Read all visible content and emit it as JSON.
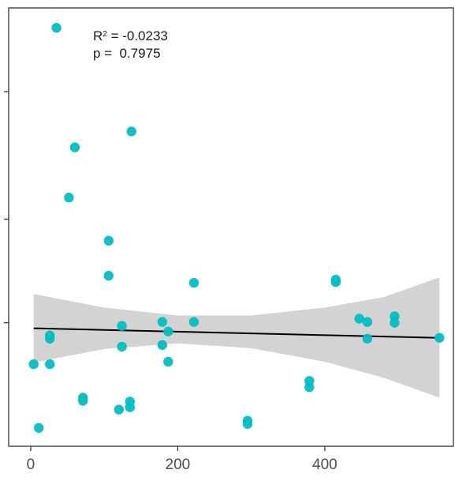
{
  "chart_data": {
    "type": "scatter",
    "title": "",
    "xlabel": "",
    "ylabel": "",
    "xlim": [
      -30,
      575
    ],
    "ylim": [
      -1.85,
      3.65
    ],
    "x_ticks": [
      0,
      200,
      400
    ],
    "x_tick_labels": [
      "0",
      "200",
      "400"
    ],
    "y_ticks": [
      -0.3,
      1.0,
      2.6
    ],
    "y_tick_labels": [
      "",
      "",
      ""
    ],
    "grid": false,
    "annotation": {
      "r2_label": "R",
      "r2_sup": "2",
      "r2_text": " = -0.0233",
      "p_text": "p =  0.7975"
    },
    "point_color": "#00bfc4",
    "line_color": "#000000",
    "band_color": "#d3d3d3",
    "points": [
      {
        "x": 35,
        "y": 3.4
      },
      {
        "x": 60,
        "y": 1.9
      },
      {
        "x": 137,
        "y": 2.1
      },
      {
        "x": 52,
        "y": 1.27
      },
      {
        "x": 106,
        "y": 0.73
      },
      {
        "x": 106,
        "y": 0.29
      },
      {
        "x": 222,
        "y": 0.2
      },
      {
        "x": 415,
        "y": 0.24
      },
      {
        "x": 415,
        "y": 0.21
      },
      {
        "x": 447,
        "y": -0.25
      },
      {
        "x": 458,
        "y": -0.29
      },
      {
        "x": 495,
        "y": -0.22
      },
      {
        "x": 495,
        "y": -0.3
      },
      {
        "x": 556,
        "y": -0.49
      },
      {
        "x": 458,
        "y": -0.5
      },
      {
        "x": 179,
        "y": -0.29
      },
      {
        "x": 222,
        "y": -0.29
      },
      {
        "x": 124,
        "y": -0.34
      },
      {
        "x": 187,
        "y": -0.41
      },
      {
        "x": 26,
        "y": -0.46
      },
      {
        "x": 26,
        "y": -0.5
      },
      {
        "x": 124,
        "y": -0.6
      },
      {
        "x": 179,
        "y": -0.58
      },
      {
        "x": 187,
        "y": -0.79
      },
      {
        "x": 4,
        "y": -0.82
      },
      {
        "x": 26,
        "y": -0.82
      },
      {
        "x": 379,
        "y": -1.03
      },
      {
        "x": 379,
        "y": -1.11
      },
      {
        "x": 71,
        "y": -1.24
      },
      {
        "x": 71,
        "y": -1.28
      },
      {
        "x": 135,
        "y": -1.29
      },
      {
        "x": 135,
        "y": -1.36
      },
      {
        "x": 120,
        "y": -1.39
      },
      {
        "x": 295,
        "y": -1.53
      },
      {
        "x": 295,
        "y": -1.57
      },
      {
        "x": 11,
        "y": -1.62
      }
    ],
    "fit_line": {
      "x": [
        4,
        556
      ],
      "y": [
        -0.37,
        -0.49
      ]
    },
    "conf_band": [
      {
        "x": 4,
        "lower": -0.8,
        "upper": 0.06
      },
      {
        "x": 100,
        "lower": -0.63,
        "upper": -0.11
      },
      {
        "x": 200,
        "lower": -0.56,
        "upper": -0.21
      },
      {
        "x": 300,
        "lower": -0.62,
        "upper": -0.21
      },
      {
        "x": 400,
        "lower": -0.79,
        "upper": -0.11
      },
      {
        "x": 480,
        "lower": -0.99,
        "upper": 0.02
      },
      {
        "x": 556,
        "lower": -1.24,
        "upper": 0.27
      }
    ]
  }
}
